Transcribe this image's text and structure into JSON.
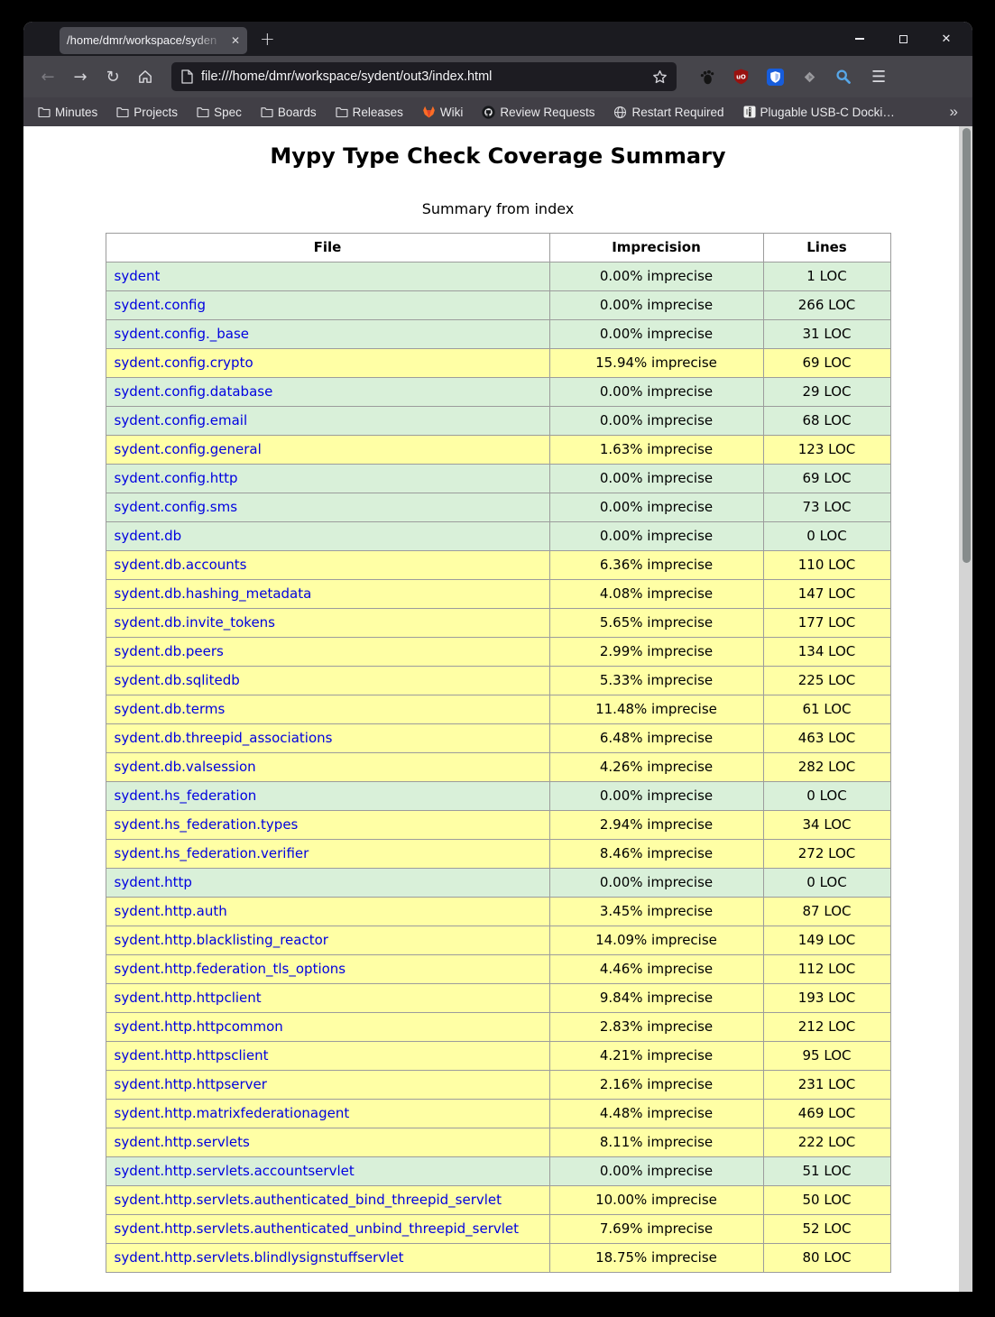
{
  "chrome": {
    "tab_title": "/home/dmr/workspace/syden",
    "tab_close": "✕",
    "new_tab": "+",
    "window_close": "✕",
    "nav": {
      "back": "←",
      "forward": "→",
      "reload": "↻"
    },
    "url": "file:///home/dmr/workspace/sydent/out3/index.html",
    "hamburger": "☰",
    "bookmarks": [
      {
        "label": "Minutes",
        "icon": "folder"
      },
      {
        "label": "Projects",
        "icon": "folder"
      },
      {
        "label": "Spec",
        "icon": "folder"
      },
      {
        "label": "Boards",
        "icon": "folder"
      },
      {
        "label": "Releases",
        "icon": "folder"
      },
      {
        "label": "Wiki",
        "icon": "gitlab"
      },
      {
        "label": "Review Requests",
        "icon": "github"
      },
      {
        "label": "Restart Required",
        "icon": "globe"
      },
      {
        "label": "Plugable USB-C Docki…",
        "icon": "site-favicon"
      }
    ],
    "bookmarks_overflow": "»"
  },
  "page": {
    "title": "Mypy Type Check Coverage Summary",
    "subtitle": "Summary from index",
    "table": {
      "headers": [
        "File",
        "Imprecision",
        "Lines"
      ],
      "rows": [
        {
          "file": "sydent",
          "imprecision": "0.00% imprecise",
          "lines": "1 LOC",
          "quality": "good"
        },
        {
          "file": "sydent.config",
          "imprecision": "0.00% imprecise",
          "lines": "266 LOC",
          "quality": "good"
        },
        {
          "file": "sydent.config._base",
          "imprecision": "0.00% imprecise",
          "lines": "31 LOC",
          "quality": "good"
        },
        {
          "file": "sydent.config.crypto",
          "imprecision": "15.94% imprecise",
          "lines": "69 LOC",
          "quality": "imprecise"
        },
        {
          "file": "sydent.config.database",
          "imprecision": "0.00% imprecise",
          "lines": "29 LOC",
          "quality": "good"
        },
        {
          "file": "sydent.config.email",
          "imprecision": "0.00% imprecise",
          "lines": "68 LOC",
          "quality": "good"
        },
        {
          "file": "sydent.config.general",
          "imprecision": "1.63% imprecise",
          "lines": "123 LOC",
          "quality": "imprecise"
        },
        {
          "file": "sydent.config.http",
          "imprecision": "0.00% imprecise",
          "lines": "69 LOC",
          "quality": "good"
        },
        {
          "file": "sydent.config.sms",
          "imprecision": "0.00% imprecise",
          "lines": "73 LOC",
          "quality": "good"
        },
        {
          "file": "sydent.db",
          "imprecision": "0.00% imprecise",
          "lines": "0 LOC",
          "quality": "good"
        },
        {
          "file": "sydent.db.accounts",
          "imprecision": "6.36% imprecise",
          "lines": "110 LOC",
          "quality": "imprecise"
        },
        {
          "file": "sydent.db.hashing_metadata",
          "imprecision": "4.08% imprecise",
          "lines": "147 LOC",
          "quality": "imprecise"
        },
        {
          "file": "sydent.db.invite_tokens",
          "imprecision": "5.65% imprecise",
          "lines": "177 LOC",
          "quality": "imprecise"
        },
        {
          "file": "sydent.db.peers",
          "imprecision": "2.99% imprecise",
          "lines": "134 LOC",
          "quality": "imprecise"
        },
        {
          "file": "sydent.db.sqlitedb",
          "imprecision": "5.33% imprecise",
          "lines": "225 LOC",
          "quality": "imprecise"
        },
        {
          "file": "sydent.db.terms",
          "imprecision": "11.48% imprecise",
          "lines": "61 LOC",
          "quality": "imprecise"
        },
        {
          "file": "sydent.db.threepid_associations",
          "imprecision": "6.48% imprecise",
          "lines": "463 LOC",
          "quality": "imprecise"
        },
        {
          "file": "sydent.db.valsession",
          "imprecision": "4.26% imprecise",
          "lines": "282 LOC",
          "quality": "imprecise"
        },
        {
          "file": "sydent.hs_federation",
          "imprecision": "0.00% imprecise",
          "lines": "0 LOC",
          "quality": "good"
        },
        {
          "file": "sydent.hs_federation.types",
          "imprecision": "2.94% imprecise",
          "lines": "34 LOC",
          "quality": "imprecise"
        },
        {
          "file": "sydent.hs_federation.verifier",
          "imprecision": "8.46% imprecise",
          "lines": "272 LOC",
          "quality": "imprecise"
        },
        {
          "file": "sydent.http",
          "imprecision": "0.00% imprecise",
          "lines": "0 LOC",
          "quality": "good"
        },
        {
          "file": "sydent.http.auth",
          "imprecision": "3.45% imprecise",
          "lines": "87 LOC",
          "quality": "imprecise"
        },
        {
          "file": "sydent.http.blacklisting_reactor",
          "imprecision": "14.09% imprecise",
          "lines": "149 LOC",
          "quality": "imprecise"
        },
        {
          "file": "sydent.http.federation_tls_options",
          "imprecision": "4.46% imprecise",
          "lines": "112 LOC",
          "quality": "imprecise"
        },
        {
          "file": "sydent.http.httpclient",
          "imprecision": "9.84% imprecise",
          "lines": "193 LOC",
          "quality": "imprecise"
        },
        {
          "file": "sydent.http.httpcommon",
          "imprecision": "2.83% imprecise",
          "lines": "212 LOC",
          "quality": "imprecise"
        },
        {
          "file": "sydent.http.httpsclient",
          "imprecision": "4.21% imprecise",
          "lines": "95 LOC",
          "quality": "imprecise"
        },
        {
          "file": "sydent.http.httpserver",
          "imprecision": "2.16% imprecise",
          "lines": "231 LOC",
          "quality": "imprecise"
        },
        {
          "file": "sydent.http.matrixfederationagent",
          "imprecision": "4.48% imprecise",
          "lines": "469 LOC",
          "quality": "imprecise"
        },
        {
          "file": "sydent.http.servlets",
          "imprecision": "8.11% imprecise",
          "lines": "222 LOC",
          "quality": "imprecise"
        },
        {
          "file": "sydent.http.servlets.accountservlet",
          "imprecision": "0.00% imprecise",
          "lines": "51 LOC",
          "quality": "good"
        },
        {
          "file": "sydent.http.servlets.authenticated_bind_threepid_servlet",
          "imprecision": "10.00% imprecise",
          "lines": "50 LOC",
          "quality": "imprecise"
        },
        {
          "file": "sydent.http.servlets.authenticated_unbind_threepid_servlet",
          "imprecision": "7.69% imprecise",
          "lines": "52 LOC",
          "quality": "imprecise"
        },
        {
          "file": "sydent.http.servlets.blindlysignstuffservlet",
          "imprecision": "18.75% imprecise",
          "lines": "80 LOC",
          "quality": "imprecise"
        }
      ]
    }
  },
  "colors": {
    "row_good": "#d9f0d9",
    "row_imprecise": "#ffffa5",
    "link": "#0000e0",
    "toolbar": "#46454b",
    "titlebar": "#1b1b20"
  }
}
